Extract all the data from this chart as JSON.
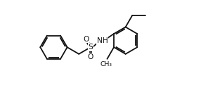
{
  "background": "#ffffff",
  "line_color": "#111111",
  "line_width": 1.3,
  "font_size_atom": 7.2,
  "xlim": [
    0,
    10
  ],
  "ylim": [
    0,
    6.5
  ],
  "figsize": [
    2.86,
    1.48
  ],
  "dpi": 100
}
